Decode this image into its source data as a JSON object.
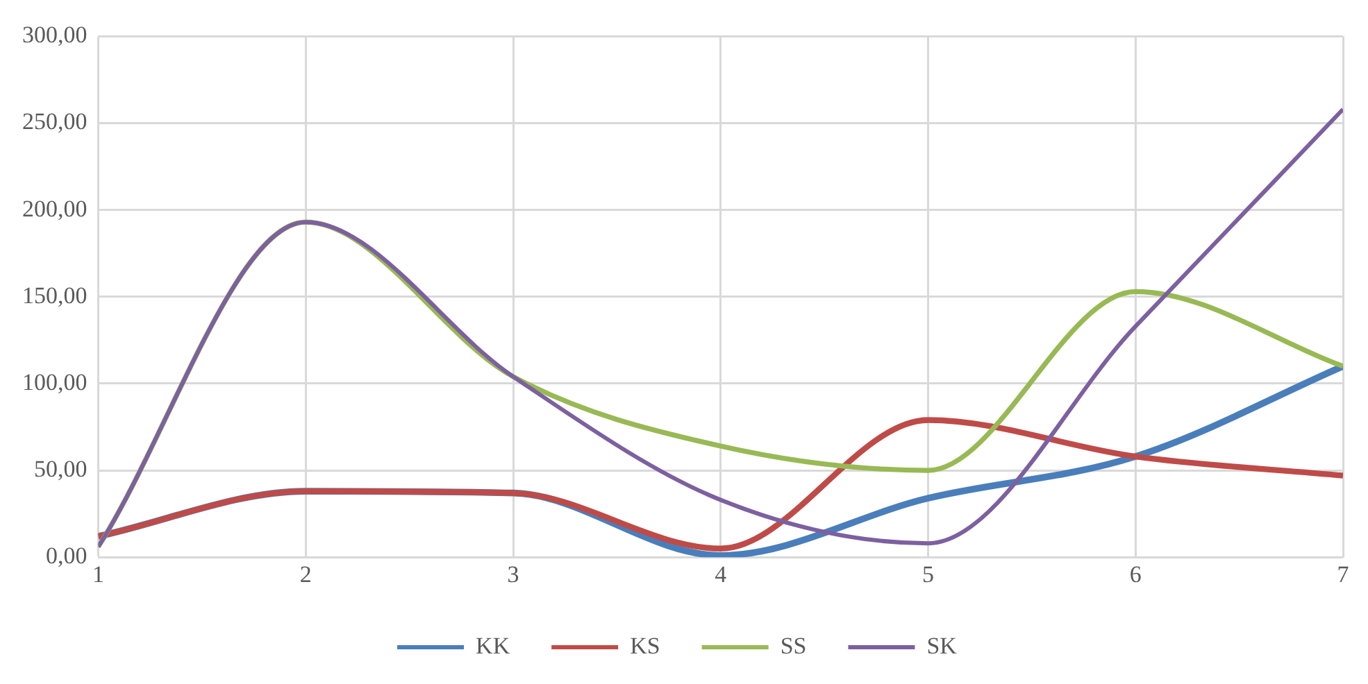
{
  "chart_data": {
    "type": "line",
    "x": [
      1,
      2,
      3,
      4,
      5,
      6,
      7
    ],
    "series": [
      {
        "name": "KK",
        "color": "#4a7ebb",
        "values": [
          12,
          38,
          37,
          1,
          34,
          58,
          110
        ]
      },
      {
        "name": "KS",
        "color": "#be4b48",
        "values": [
          12,
          38,
          37,
          5,
          79,
          58,
          47
        ]
      },
      {
        "name": "SS",
        "color": "#98b954",
        "values": [
          6,
          193,
          104,
          64,
          50,
          153,
          110
        ]
      },
      {
        "name": "SK",
        "color": "#7d60a0",
        "values": [
          6,
          193,
          104,
          33,
          8,
          133,
          258
        ]
      }
    ],
    "xlim": [
      1,
      7
    ],
    "xticks": [
      1,
      2,
      3,
      4,
      5,
      6,
      7
    ],
    "ylim": [
      0,
      300
    ],
    "yticks": [
      {
        "value": 0,
        "label": "0,00"
      },
      {
        "value": 50,
        "label": "50,00"
      },
      {
        "value": 100,
        "label": "100,00"
      },
      {
        "value": 150,
        "label": "150,00"
      },
      {
        "value": 200,
        "label": "200,00"
      },
      {
        "value": 250,
        "label": "250,00"
      },
      {
        "value": 300,
        "label": "300,00"
      }
    ],
    "grid": true,
    "legend": "bottom",
    "marker": "none",
    "line_style": "solid"
  }
}
